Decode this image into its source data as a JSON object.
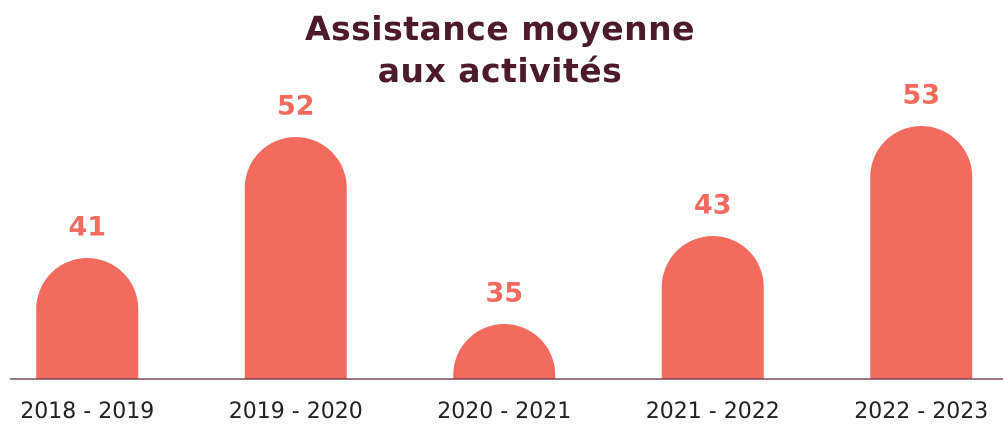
{
  "chart_data": {
    "type": "bar",
    "title": "Assistance moyenne aux activités",
    "categories": [
      "2018 - 2019",
      "2019 - 2020",
      "2020 - 2021",
      "2021 - 2022",
      "2022 - 2023"
    ],
    "values": [
      41,
      52,
      35,
      43,
      53
    ],
    "color": "#f26b5e",
    "ylim": [
      30,
      55
    ]
  }
}
